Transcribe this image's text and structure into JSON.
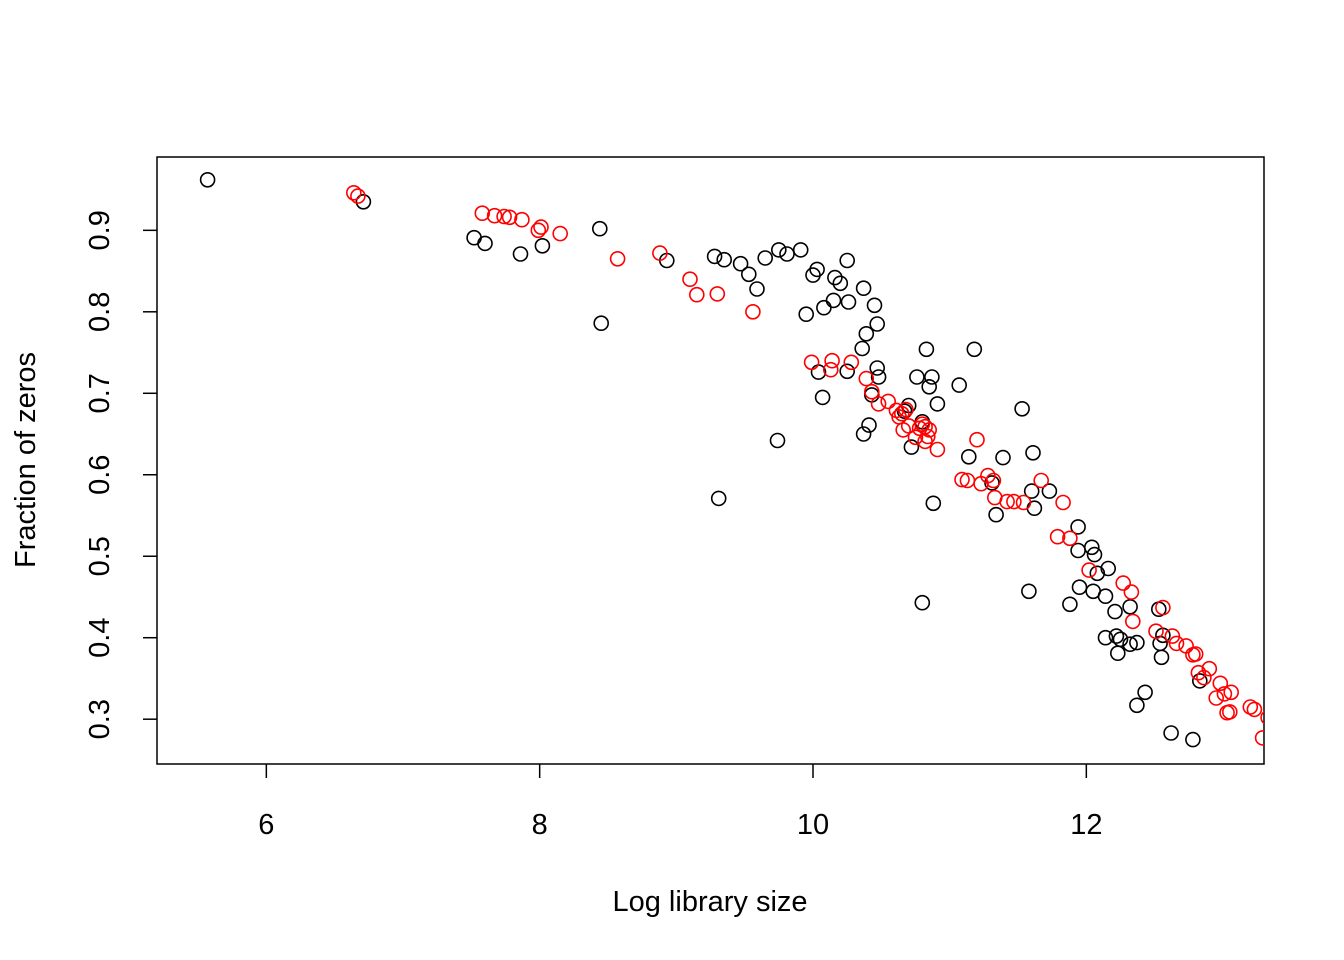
{
  "chart_data": {
    "type": "scatter",
    "title": "",
    "xlabel": "Log library size",
    "ylabel": "Fraction of zeros",
    "xlim": [
      5.2,
      13.3
    ],
    "ylim": [
      0.245,
      0.99
    ],
    "x_ticks": [
      6,
      8,
      10,
      12
    ],
    "x_tick_labels": [
      "6",
      "8",
      "10",
      "12"
    ],
    "y_ticks": [
      0.3,
      0.4,
      0.5,
      0.6,
      0.7,
      0.8,
      0.9
    ],
    "y_tick_labels": [
      "0.3",
      "0.4",
      "0.5",
      "0.6",
      "0.7",
      "0.8",
      "0.9"
    ],
    "grid": false,
    "legend": "none",
    "series": [
      {
        "color": "#000000",
        "marker": "open-circle",
        "points": [
          [
            5.57,
            0.962
          ],
          [
            6.71,
            0.935
          ],
          [
            7.52,
            0.891
          ],
          [
            7.6,
            0.884
          ],
          [
            7.86,
            0.871
          ],
          [
            8.02,
            0.881
          ],
          [
            8.44,
            0.902
          ],
          [
            8.45,
            0.786
          ],
          [
            8.93,
            0.863
          ],
          [
            9.28,
            0.868
          ],
          [
            9.31,
            0.571
          ],
          [
            9.35,
            0.864
          ],
          [
            9.47,
            0.859
          ],
          [
            9.53,
            0.846
          ],
          [
            9.59,
            0.828
          ],
          [
            9.65,
            0.866
          ],
          [
            9.74,
            0.642
          ],
          [
            9.75,
            0.876
          ],
          [
            9.81,
            0.871
          ],
          [
            9.91,
            0.876
          ],
          [
            9.95,
            0.797
          ],
          [
            10.0,
            0.845
          ],
          [
            10.03,
            0.852
          ],
          [
            10.04,
            0.726
          ],
          [
            10.07,
            0.695
          ],
          [
            10.08,
            0.805
          ],
          [
            10.15,
            0.814
          ],
          [
            10.16,
            0.842
          ],
          [
            10.2,
            0.835
          ],
          [
            10.25,
            0.727
          ],
          [
            10.25,
            0.863
          ],
          [
            10.26,
            0.812
          ],
          [
            10.36,
            0.755
          ],
          [
            10.37,
            0.65
          ],
          [
            10.37,
            0.829
          ],
          [
            10.39,
            0.773
          ],
          [
            10.41,
            0.661
          ],
          [
            10.43,
            0.698
          ],
          [
            10.45,
            0.808
          ],
          [
            10.47,
            0.785
          ],
          [
            10.47,
            0.731
          ],
          [
            10.48,
            0.72
          ],
          [
            10.67,
            0.678
          ],
          [
            10.7,
            0.685
          ],
          [
            10.72,
            0.634
          ],
          [
            10.76,
            0.72
          ],
          [
            10.8,
            0.443
          ],
          [
            10.8,
            0.665
          ],
          [
            10.83,
            0.754
          ],
          [
            10.85,
            0.708
          ],
          [
            10.87,
            0.72
          ],
          [
            10.88,
            0.565
          ],
          [
            10.91,
            0.687
          ],
          [
            11.07,
            0.71
          ],
          [
            11.14,
            0.622
          ],
          [
            11.18,
            0.754
          ],
          [
            11.31,
            0.59
          ],
          [
            11.34,
            0.551
          ],
          [
            11.39,
            0.621
          ],
          [
            11.53,
            0.681
          ],
          [
            11.58,
            0.457
          ],
          [
            11.6,
            0.58
          ],
          [
            11.61,
            0.627
          ],
          [
            11.62,
            0.559
          ],
          [
            11.73,
            0.58
          ],
          [
            11.88,
            0.441
          ],
          [
            11.94,
            0.536
          ],
          [
            11.94,
            0.507
          ],
          [
            11.95,
            0.462
          ],
          [
            12.04,
            0.511
          ],
          [
            12.05,
            0.457
          ],
          [
            12.06,
            0.502
          ],
          [
            12.08,
            0.479
          ],
          [
            12.14,
            0.451
          ],
          [
            12.16,
            0.485
          ],
          [
            12.14,
            0.4
          ],
          [
            12.21,
            0.432
          ],
          [
            12.22,
            0.402
          ],
          [
            12.23,
            0.381
          ],
          [
            12.25,
            0.398
          ],
          [
            12.32,
            0.438
          ],
          [
            12.32,
            0.392
          ],
          [
            12.37,
            0.394
          ],
          [
            12.37,
            0.317
          ],
          [
            12.43,
            0.333
          ],
          [
            12.53,
            0.435
          ],
          [
            12.54,
            0.393
          ],
          [
            12.55,
            0.376
          ],
          [
            12.56,
            0.403
          ],
          [
            12.62,
            0.283
          ],
          [
            12.78,
            0.275
          ],
          [
            12.83,
            0.347
          ]
        ]
      },
      {
        "color": "#ff0000",
        "marker": "open-circle",
        "points": [
          [
            6.64,
            0.946
          ],
          [
            6.67,
            0.942
          ],
          [
            7.58,
            0.921
          ],
          [
            7.67,
            0.918
          ],
          [
            7.74,
            0.917
          ],
          [
            7.78,
            0.916
          ],
          [
            7.87,
            0.913
          ],
          [
            7.99,
            0.9
          ],
          [
            8.01,
            0.904
          ],
          [
            8.15,
            0.896
          ],
          [
            8.57,
            0.865
          ],
          [
            8.88,
            0.872
          ],
          [
            9.1,
            0.84
          ],
          [
            9.15,
            0.821
          ],
          [
            9.3,
            0.822
          ],
          [
            9.56,
            0.8
          ],
          [
            9.99,
            0.738
          ],
          [
            10.13,
            0.729
          ],
          [
            10.14,
            0.74
          ],
          [
            10.28,
            0.738
          ],
          [
            10.39,
            0.718
          ],
          [
            10.43,
            0.702
          ],
          [
            10.48,
            0.687
          ],
          [
            10.55,
            0.69
          ],
          [
            10.61,
            0.679
          ],
          [
            10.63,
            0.671
          ],
          [
            10.65,
            0.675
          ],
          [
            10.66,
            0.655
          ],
          [
            10.68,
            0.68
          ],
          [
            10.7,
            0.66
          ],
          [
            10.75,
            0.646
          ],
          [
            10.78,
            0.657
          ],
          [
            10.8,
            0.662
          ],
          [
            10.82,
            0.659
          ],
          [
            10.82,
            0.641
          ],
          [
            10.84,
            0.647
          ],
          [
            10.85,
            0.655
          ],
          [
            10.91,
            0.631
          ],
          [
            11.09,
            0.594
          ],
          [
            11.13,
            0.593
          ],
          [
            11.2,
            0.643
          ],
          [
            11.23,
            0.589
          ],
          [
            11.28,
            0.599
          ],
          [
            11.32,
            0.593
          ],
          [
            11.33,
            0.572
          ],
          [
            11.42,
            0.567
          ],
          [
            11.47,
            0.567
          ],
          [
            11.54,
            0.566
          ],
          [
            11.67,
            0.593
          ],
          [
            11.79,
            0.524
          ],
          [
            11.83,
            0.566
          ],
          [
            11.88,
            0.522
          ],
          [
            12.02,
            0.483
          ],
          [
            12.27,
            0.467
          ],
          [
            12.33,
            0.456
          ],
          [
            12.34,
            0.42
          ],
          [
            12.51,
            0.408
          ],
          [
            12.56,
            0.437
          ],
          [
            12.63,
            0.402
          ],
          [
            12.66,
            0.393
          ],
          [
            12.73,
            0.39
          ],
          [
            12.78,
            0.379
          ],
          [
            12.8,
            0.38
          ],
          [
            12.82,
            0.357
          ],
          [
            12.86,
            0.351
          ],
          [
            12.9,
            0.362
          ],
          [
            12.95,
            0.326
          ],
          [
            12.98,
            0.344
          ],
          [
            13.01,
            0.331
          ],
          [
            13.03,
            0.308
          ],
          [
            13.05,
            0.309
          ],
          [
            13.06,
            0.333
          ],
          [
            13.2,
            0.315
          ],
          [
            13.23,
            0.312
          ],
          [
            13.29,
            0.277
          ],
          [
            13.33,
            0.302
          ]
        ]
      }
    ]
  }
}
